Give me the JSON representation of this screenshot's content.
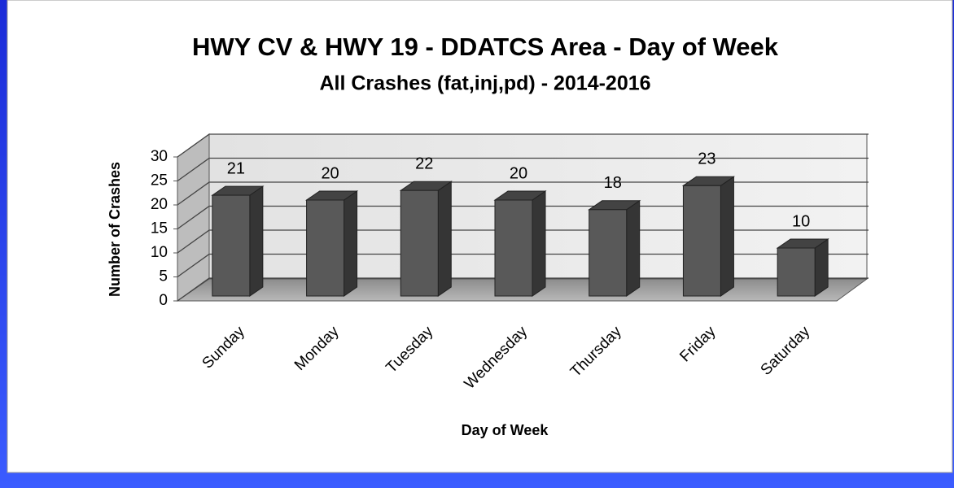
{
  "chart_data": {
    "type": "bar",
    "title": "HWY CV & HWY 19 - DDATCS Area - Day of Week",
    "subtitle": "All Crashes (fat,inj,pd) - 2014-2016",
    "x_label": "Day of Week",
    "y_label": "Number of Crashes",
    "categories": [
      "Sunday",
      "Monday",
      "Tuesday",
      "Wednesday",
      "Thursday",
      "Friday",
      "Saturday"
    ],
    "values": [
      21,
      20,
      22,
      20,
      18,
      23,
      10
    ],
    "color": "#595959",
    "ylim": [
      0,
      30
    ],
    "yticks": [
      0,
      5,
      10,
      15,
      20,
      25,
      30
    ],
    "grid": true
  }
}
